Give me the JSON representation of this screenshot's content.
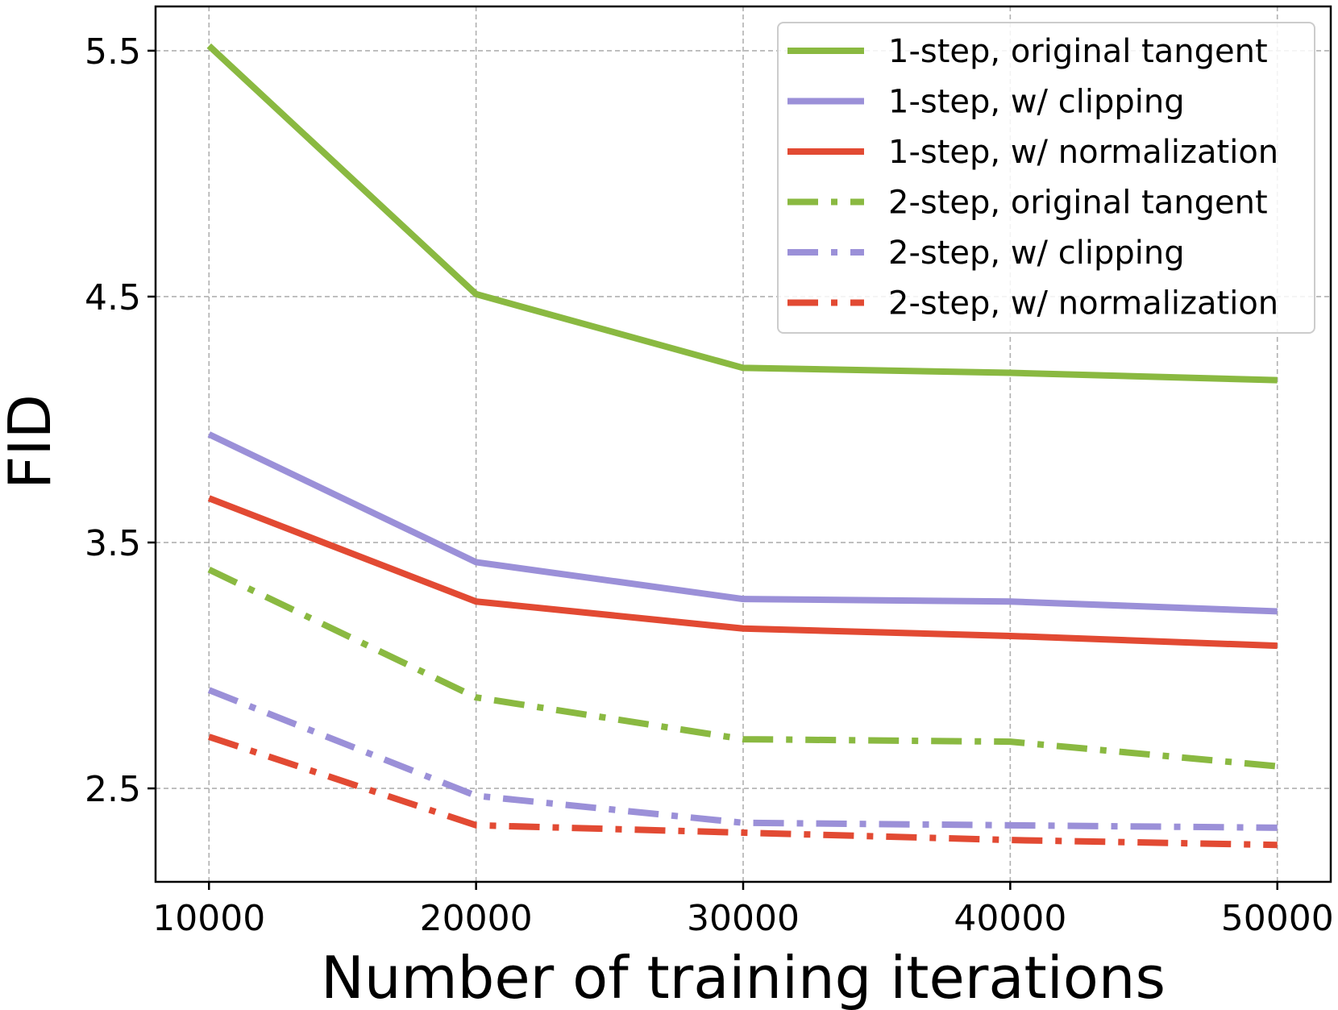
{
  "chart_data": {
    "type": "line",
    "title": "",
    "xlabel": "Number of training iterations",
    "ylabel": "FID",
    "x": [
      10000,
      20000,
      30000,
      40000,
      50000
    ],
    "x_ticks": [
      "10000",
      "20000",
      "30000",
      "40000",
      "50000"
    ],
    "y_ticks": [
      "2.5",
      "3.5",
      "4.5",
      "5.5"
    ],
    "xlim": [
      8000,
      52000
    ],
    "ylim": [
      2.12,
      5.68
    ],
    "grid": true,
    "legend_position": "top-right",
    "series": [
      {
        "name": "1-step, original tangent",
        "values": [
          5.52,
          4.51,
          4.21,
          4.19,
          4.16
        ],
        "color": "#8ab941",
        "dash": "solid"
      },
      {
        "name": "1-step, w/ clipping",
        "values": [
          3.94,
          3.42,
          3.27,
          3.26,
          3.22
        ],
        "color": "#9b90d8",
        "dash": "solid"
      },
      {
        "name": "1-step, w/ normalization",
        "values": [
          3.68,
          3.26,
          3.15,
          3.12,
          3.08
        ],
        "color": "#e24a33",
        "dash": "solid"
      },
      {
        "name": "2-step, original tangent",
        "values": [
          3.39,
          2.87,
          2.7,
          2.69,
          2.59
        ],
        "color": "#8ab941",
        "dash": "dashdot"
      },
      {
        "name": "2-step, w/ clipping",
        "values": [
          2.9,
          2.47,
          2.36,
          2.35,
          2.34
        ],
        "color": "#9b90d8",
        "dash": "dashdot"
      },
      {
        "name": "2-step, w/ normalization",
        "values": [
          2.71,
          2.35,
          2.32,
          2.29,
          2.27
        ],
        "color": "#e24a33",
        "dash": "dashdot"
      }
    ]
  }
}
